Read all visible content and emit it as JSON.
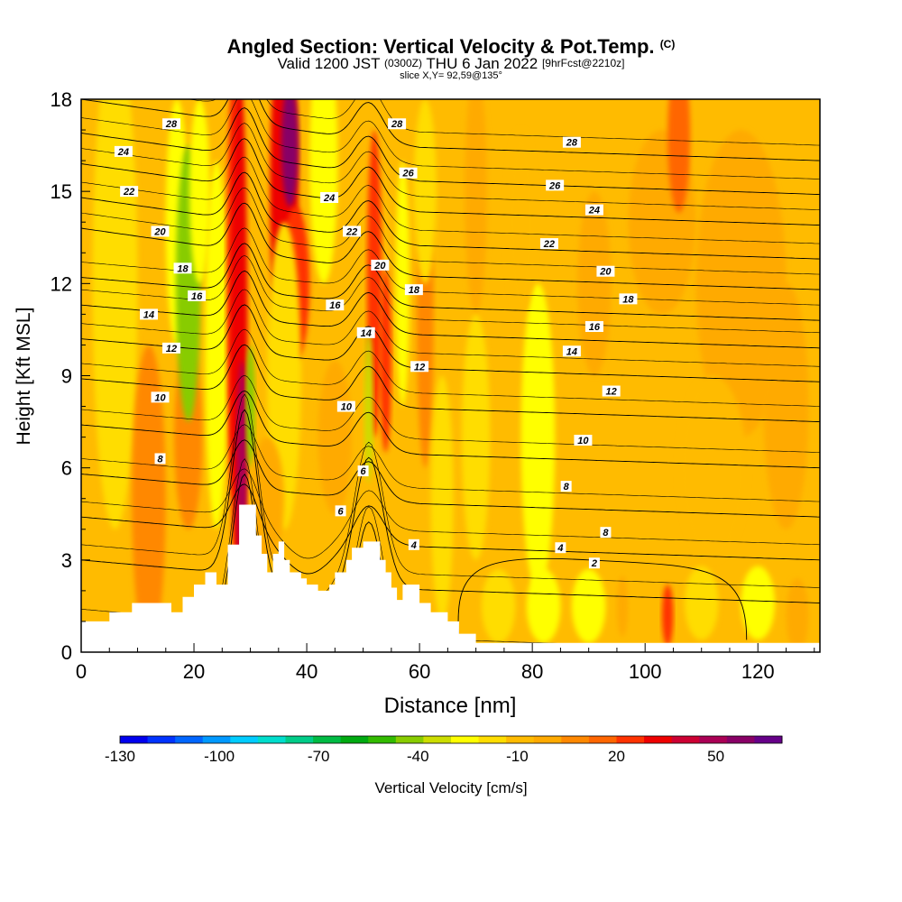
{
  "title": {
    "main": "Angled Section: Vertical Velocity & Pot.Temp.",
    "mark": "(C)",
    "valid_prefix": "Valid 1200 JST",
    "valid_utc": "(0300Z)",
    "valid_date": "THU 6 Jan 2022",
    "forecast": "[9hrFcst@2210z]",
    "slice": "slice X,Y= 92,59@135°"
  },
  "chart_data": {
    "type": "heatmap",
    "title": "Angled Section: Vertical Velocity & Pot.Temp.",
    "xlabel": "Distance [nm]",
    "ylabel": "Height [Kft MSL]",
    "xlim": [
      0,
      131
    ],
    "ylim": [
      0,
      18
    ],
    "xticks": [
      0,
      20,
      40,
      60,
      80,
      100,
      120
    ],
    "yticks": [
      0,
      3,
      6,
      9,
      12,
      15,
      18
    ],
    "field": "Vertical Velocity [cm/s]",
    "colorbar": {
      "label": "Vertical Velocity [cm/s]",
      "min": -130,
      "max": 70,
      "step": 10,
      "tick_labels": [
        -130,
        -100,
        -70,
        -40,
        -10,
        20,
        50
      ],
      "colors": [
        "#0000ee",
        "#0033ff",
        "#0066ff",
        "#0099ff",
        "#00ccff",
        "#00ddcc",
        "#00cc88",
        "#00bb44",
        "#00aa11",
        "#33bb00",
        "#88cc00",
        "#ccdd00",
        "#ffff00",
        "#ffdd00",
        "#ffbb00",
        "#ffaa00",
        "#ff8800",
        "#ff6600",
        "#ff3300",
        "#ee0000",
        "#cc0033",
        "#aa0055",
        "#880066",
        "#660088"
      ]
    },
    "terrain": [
      [
        0,
        1
      ],
      [
        5,
        1
      ],
      [
        5,
        1.3
      ],
      [
        9,
        1.3
      ],
      [
        9,
        1.6
      ],
      [
        13,
        1.6
      ],
      [
        13,
        1.6
      ],
      [
        16,
        1.6
      ],
      [
        16,
        1.3
      ],
      [
        18,
        1.3
      ],
      [
        18,
        1.8
      ],
      [
        20,
        1.8
      ],
      [
        20,
        2.2
      ],
      [
        22,
        2.2
      ],
      [
        22,
        2.6
      ],
      [
        24,
        2.6
      ],
      [
        24,
        2.2
      ],
      [
        26,
        2.2
      ],
      [
        26,
        3.5
      ],
      [
        28,
        3.5
      ],
      [
        28,
        4.8
      ],
      [
        31,
        4.8
      ],
      [
        31,
        3.8
      ],
      [
        32,
        3.8
      ],
      [
        32,
        3.2
      ],
      [
        33,
        3.2
      ],
      [
        33,
        2.6
      ],
      [
        34,
        2.6
      ],
      [
        34,
        3.2
      ],
      [
        35,
        3.2
      ],
      [
        35,
        3.6
      ],
      [
        36,
        3.6
      ],
      [
        36,
        3.0
      ],
      [
        37,
        3.0
      ],
      [
        37,
        2.6
      ],
      [
        39,
        2.6
      ],
      [
        39,
        2.4
      ],
      [
        40,
        2.4
      ],
      [
        40,
        2.2
      ],
      [
        42,
        2.2
      ],
      [
        42,
        2.0
      ],
      [
        44,
        2.0
      ],
      [
        44,
        2.2
      ],
      [
        45,
        2.2
      ],
      [
        45,
        2.6
      ],
      [
        47,
        2.6
      ],
      [
        47,
        3.0
      ],
      [
        48,
        3.0
      ],
      [
        48,
        3.4
      ],
      [
        50,
        3.4
      ],
      [
        50,
        3.6
      ],
      [
        53,
        3.6
      ],
      [
        53,
        3.0
      ],
      [
        54,
        3.0
      ],
      [
        54,
        2.6
      ],
      [
        55,
        2.6
      ],
      [
        55,
        2.1
      ],
      [
        56,
        2.1
      ],
      [
        56,
        1.7
      ],
      [
        57,
        1.7
      ],
      [
        57,
        2.2
      ],
      [
        60,
        2.2
      ],
      [
        60,
        1.6
      ],
      [
        62,
        1.6
      ],
      [
        62,
        1.3
      ],
      [
        65,
        1.3
      ],
      [
        65,
        1.0
      ],
      [
        67,
        1.0
      ],
      [
        67,
        0.6
      ],
      [
        70,
        0.6
      ],
      [
        70,
        0.3
      ],
      [
        131,
        0.3
      ]
    ],
    "theta_contours": [
      {
        "value": 2,
        "label": "2"
      },
      {
        "value": 4,
        "label": "4"
      },
      {
        "value": 6,
        "label": "6"
      },
      {
        "value": 8,
        "label": "8"
      },
      {
        "value": 10,
        "label": "10"
      },
      {
        "value": 12,
        "label": "12"
      },
      {
        "value": 14,
        "label": "14"
      },
      {
        "value": 16,
        "label": "16"
      },
      {
        "value": 18,
        "label": "18"
      },
      {
        "value": 20,
        "label": "20"
      },
      {
        "value": 22,
        "label": "22"
      },
      {
        "value": 24,
        "label": "24"
      },
      {
        "value": 26,
        "label": "26"
      },
      {
        "value": 28,
        "label": "28"
      }
    ],
    "contour_labels": [
      {
        "text": "28",
        "x": 16,
        "y": 17.2
      },
      {
        "text": "24",
        "x": 7.5,
        "y": 16.3
      },
      {
        "text": "22",
        "x": 8.5,
        "y": 15.0
      },
      {
        "text": "20",
        "x": 14,
        "y": 13.7
      },
      {
        "text": "18",
        "x": 18,
        "y": 12.5
      },
      {
        "text": "16",
        "x": 20.5,
        "y": 11.6
      },
      {
        "text": "14",
        "x": 12,
        "y": 11.0
      },
      {
        "text": "12",
        "x": 16,
        "y": 9.9
      },
      {
        "text": "10",
        "x": 14,
        "y": 8.3
      },
      {
        "text": "8",
        "x": 14,
        "y": 6.3
      },
      {
        "text": "28",
        "x": 56,
        "y": 17.2
      },
      {
        "text": "26",
        "x": 58,
        "y": 15.6
      },
      {
        "text": "24",
        "x": 44,
        "y": 14.8
      },
      {
        "text": "22",
        "x": 48,
        "y": 13.7
      },
      {
        "text": "20",
        "x": 53,
        "y": 12.6
      },
      {
        "text": "18",
        "x": 59,
        "y": 11.8
      },
      {
        "text": "16",
        "x": 45,
        "y": 11.3
      },
      {
        "text": "14",
        "x": 50.5,
        "y": 10.4
      },
      {
        "text": "12",
        "x": 60,
        "y": 9.3
      },
      {
        "text": "10",
        "x": 47,
        "y": 8.0
      },
      {
        "text": "6",
        "x": 50,
        "y": 5.9
      },
      {
        "text": "6",
        "x": 46,
        "y": 4.6
      },
      {
        "text": "4",
        "x": 59,
        "y": 3.5
      },
      {
        "text": "28",
        "x": 87,
        "y": 16.6
      },
      {
        "text": "26",
        "x": 84,
        "y": 15.2
      },
      {
        "text": "24",
        "x": 91,
        "y": 14.4
      },
      {
        "text": "22",
        "x": 83,
        "y": 13.3
      },
      {
        "text": "20",
        "x": 93,
        "y": 12.4
      },
      {
        "text": "18",
        "x": 97,
        "y": 11.5
      },
      {
        "text": "16",
        "x": 91,
        "y": 10.6
      },
      {
        "text": "14",
        "x": 87,
        "y": 9.8
      },
      {
        "text": "12",
        "x": 94,
        "y": 8.5
      },
      {
        "text": "10",
        "x": 89,
        "y": 6.9
      },
      {
        "text": "8",
        "x": 86,
        "y": 5.4
      },
      {
        "text": "8",
        "x": 93,
        "y": 3.9
      },
      {
        "text": "4",
        "x": 85,
        "y": 3.4
      },
      {
        "text": "2",
        "x": 91,
        "y": 2.9
      }
    ]
  }
}
